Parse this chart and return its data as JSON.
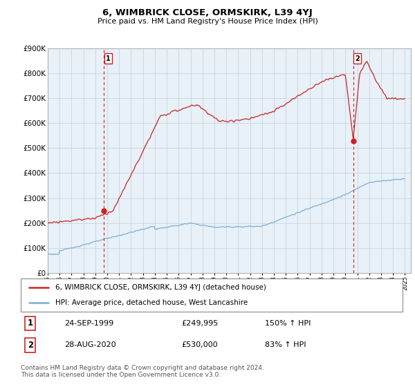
{
  "title": "6, WIMBRICK CLOSE, ORMSKIRK, L39 4YJ",
  "subtitle": "Price paid vs. HM Land Registry's House Price Index (HPI)",
  "legend_label_red": "6, WIMBRICK CLOSE, ORMSKIRK, L39 4YJ (detached house)",
  "legend_label_blue": "HPI: Average price, detached house, West Lancashire",
  "transaction1_date": "24-SEP-1999",
  "transaction1_price": "£249,995",
  "transaction1_hpi": "150% ↑ HPI",
  "transaction2_date": "28-AUG-2020",
  "transaction2_price": "£530,000",
  "transaction2_hpi": "83% ↑ HPI",
  "footer": "Contains HM Land Registry data © Crown copyright and database right 2024.\nThis data is licensed under the Open Government Licence v3.0.",
  "ylim": [
    0,
    900000
  ],
  "xlim_start": 1995.0,
  "xlim_end": 2025.5,
  "vline1_x": 1999.73,
  "vline2_x": 2020.66,
  "marker1_x": 1999.73,
  "marker1_y": 249995,
  "marker2_x": 2020.66,
  "marker2_y": 530000,
  "red_color": "#cc2222",
  "blue_color": "#7aaed6",
  "vline_color": "#cc2222",
  "background_color": "#ffffff",
  "chart_bg_color": "#e8f0f8",
  "grid_color": "#c8d4e0"
}
